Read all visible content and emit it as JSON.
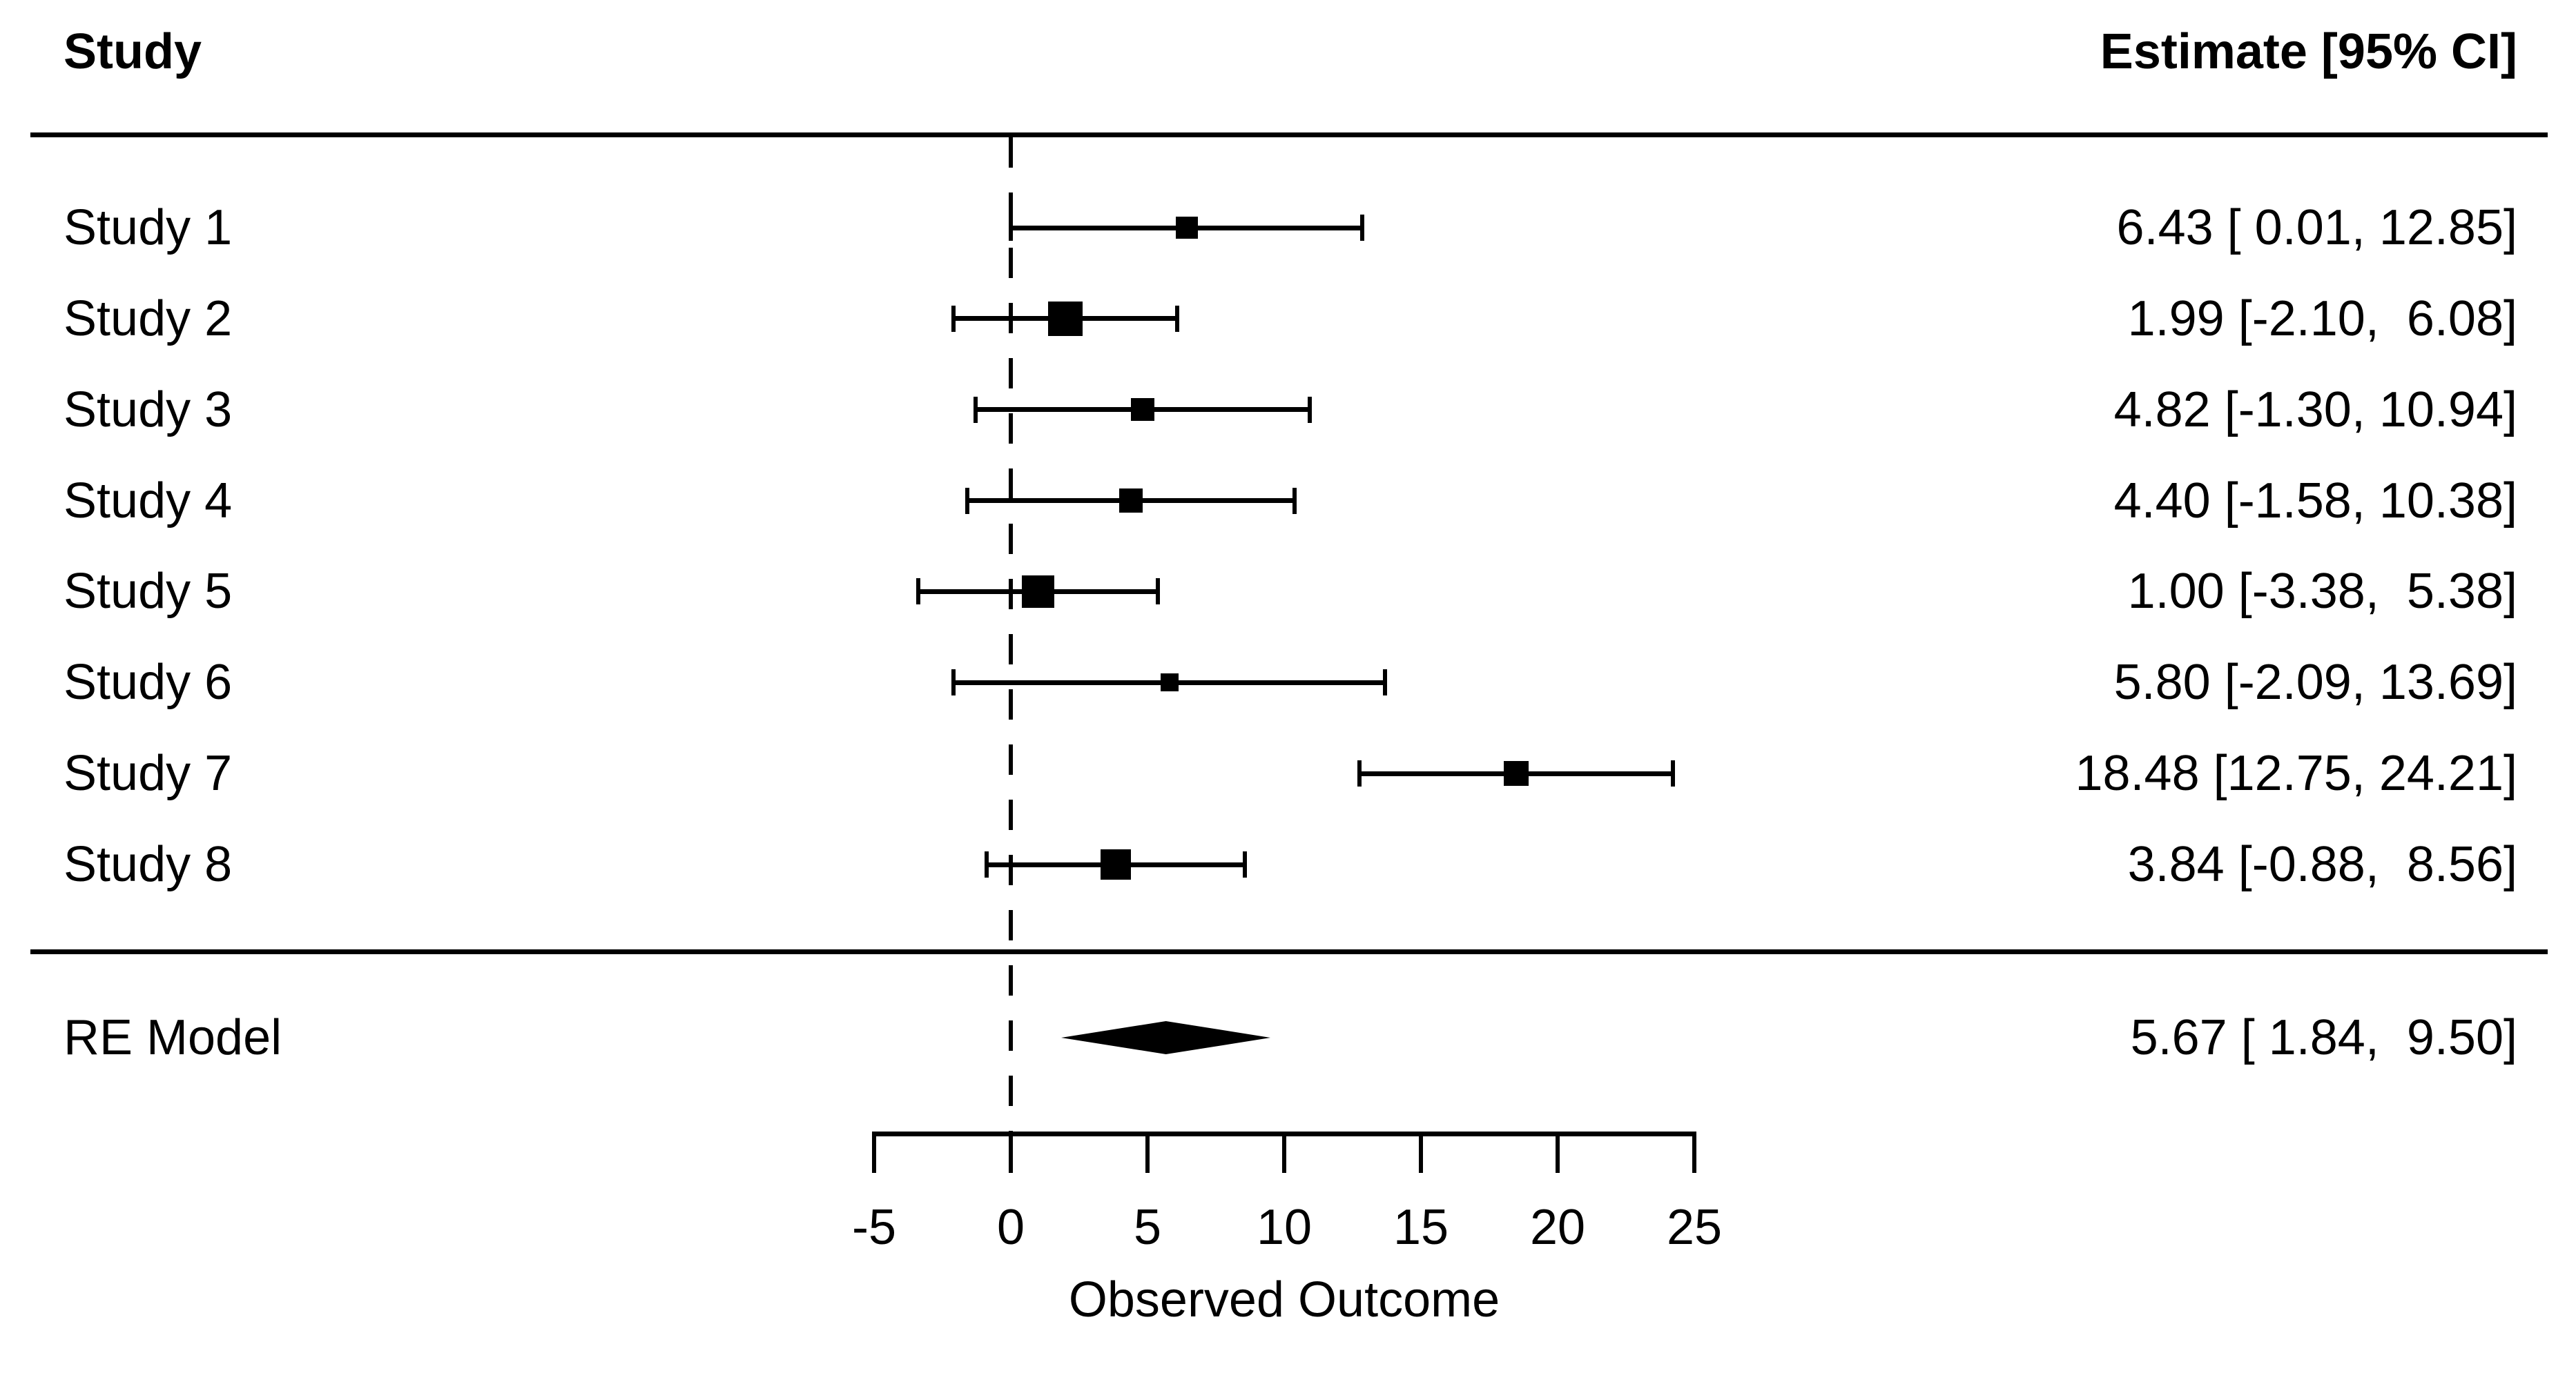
{
  "table": {
    "left_header": "Study",
    "right_header": "Estimate [95% CI]"
  },
  "chart_data": {
    "type": "forest",
    "title": "",
    "xlabel": "Observed Outcome",
    "x_ticks": [
      -5,
      0,
      5,
      10,
      15,
      20,
      25
    ],
    "xlim": [
      -5,
      25
    ],
    "reference_line": 0,
    "grid": false,
    "legend": "none",
    "studies": [
      {
        "label": "Study 1",
        "estimate": 6.43,
        "ci_lower": 0.01,
        "ci_upper": 12.85,
        "annotation": "6.43 [ 0.01, 12.85]"
      },
      {
        "label": "Study 2",
        "estimate": 1.99,
        "ci_lower": -2.1,
        "ci_upper": 6.08,
        "annotation": "1.99 [-2.10,  6.08]"
      },
      {
        "label": "Study 3",
        "estimate": 4.82,
        "ci_lower": -1.3,
        "ci_upper": 10.94,
        "annotation": "4.82 [-1.30, 10.94]"
      },
      {
        "label": "Study 4",
        "estimate": 4.4,
        "ci_lower": -1.58,
        "ci_upper": 10.38,
        "annotation": "4.40 [-1.58, 10.38]"
      },
      {
        "label": "Study 5",
        "estimate": 1.0,
        "ci_lower": -3.38,
        "ci_upper": 5.38,
        "annotation": "1.00 [-3.38,  5.38]"
      },
      {
        "label": "Study 6",
        "estimate": 5.8,
        "ci_lower": -2.09,
        "ci_upper": 13.69,
        "annotation": "5.80 [-2.09, 13.69]"
      },
      {
        "label": "Study 7",
        "estimate": 18.48,
        "ci_lower": 12.75,
        "ci_upper": 24.21,
        "annotation": "18.48 [12.75, 24.21]"
      },
      {
        "label": "Study 8",
        "estimate": 3.84,
        "ci_lower": -0.88,
        "ci_upper": 8.56,
        "annotation": "3.84 [-0.88,  8.56]"
      }
    ],
    "summary": {
      "label": "RE Model",
      "estimate": 5.67,
      "ci_lower": 1.84,
      "ci_upper": 9.5,
      "annotation": "5.67 [ 1.84,  9.50]"
    },
    "colors": {
      "foreground": "#000000",
      "background": "#ffffff"
    }
  }
}
